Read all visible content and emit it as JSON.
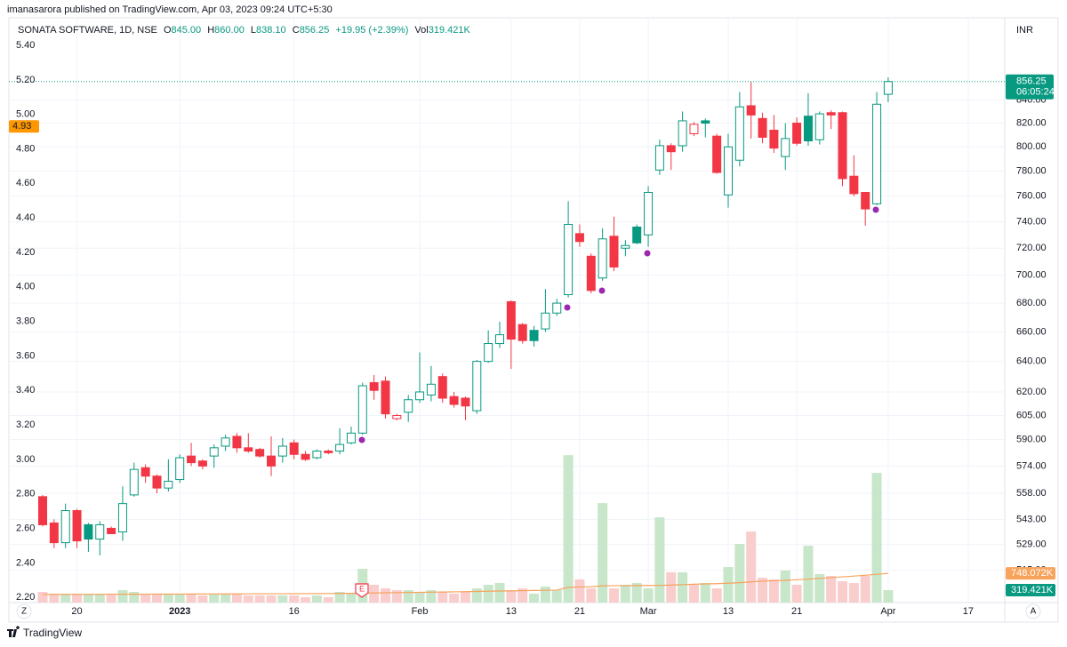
{
  "header": {
    "text": "imanasarora published on TradingView.com, Apr 03, 2023 09:24 UTC+5:30"
  },
  "chart_data": {
    "type": "candlestick",
    "legend": {
      "symbol": "SONATA SOFTWARE, 1D, NSE",
      "items": [
        {
          "key": "O",
          "value": "845.00"
        },
        {
          "key": "H",
          "value": "860.00"
        },
        {
          "key": "L",
          "value": "838.10"
        },
        {
          "key": "C",
          "value": "856.25"
        }
      ],
      "change": "+19.95 (+2.39%)",
      "volume_key": "Vol",
      "volume_value": "319.421K"
    },
    "currency": "INR",
    "categories": [
      null,
      null,
      null,
      "20",
      null,
      null,
      null,
      null,
      null,
      null,
      null,
      null,
      "2023",
      null,
      null,
      null,
      null,
      null,
      null,
      null,
      null,
      null,
      "16",
      null,
      null,
      null,
      null,
      null,
      null,
      null,
      null,
      null,
      null,
      "Feb",
      null,
      null,
      null,
      null,
      null,
      null,
      null,
      "13",
      null,
      null,
      null,
      null,
      null,
      "21",
      null,
      null,
      null,
      null,
      null,
      "Mar",
      null,
      null,
      null,
      null,
      null,
      null,
      "13",
      null,
      null,
      null,
      null,
      null,
      "21",
      null,
      null,
      null,
      null,
      null,
      null,
      null,
      "Apr",
      null,
      null,
      null,
      null,
      null,
      null,
      "17"
    ],
    "open": [
      556,
      541,
      530,
      548,
      540,
      532,
      538,
      536,
      557,
      573,
      568,
      561,
      566,
      580,
      577,
      580,
      586,
      592,
      585,
      584,
      580,
      580,
      588,
      581,
      579,
      583,
      583,
      588,
      594,
      626,
      627,
      603,
      607,
      615,
      618,
      630,
      617,
      616,
      608,
      640,
      652,
      681,
      665,
      661,
      662,
      673,
      686,
      731,
      714,
      698,
      729,
      720,
      736,
      730,
      781,
      801,
      801,
      811,
      822,
      809,
      761,
      789,
      835,
      824,
      814,
      792,
      820,
      826,
      806,
      829,
      829,
      776,
      763,
      754,
      845,
      null,
      null,
      null,
      null,
      null,
      null,
      null
    ],
    "high": [
      557,
      543,
      552,
      549,
      541,
      542,
      539,
      562,
      576,
      575,
      569,
      578,
      581,
      588,
      578,
      587,
      593,
      594,
      594,
      585,
      592,
      591,
      590,
      583,
      584,
      584,
      597,
      598,
      626,
      631,
      630,
      606,
      618,
      646,
      637,
      632,
      620,
      617,
      641,
      661,
      667,
      682,
      666,
      664,
      690,
      683,
      756,
      738,
      716,
      735,
      744,
      726,
      738,
      768,
      806,
      803,
      830,
      821,
      824,
      811,
      811,
      847,
      856,
      829,
      827,
      820,
      825,
      846,
      830,
      831,
      830,
      793,
      763,
      847,
      860,
      null,
      null,
      null,
      null,
      null,
      null,
      null
    ],
    "low": [
      539,
      527,
      527,
      527,
      525,
      523,
      535,
      531,
      556,
      564,
      558,
      559,
      564,
      574,
      572,
      573,
      583,
      582,
      582,
      579,
      568,
      576,
      578,
      577,
      578,
      581,
      581,
      587,
      593,
      615,
      603,
      602,
      601,
      613,
      614,
      613,
      610,
      602,
      606,
      639,
      649,
      635,
      652,
      650,
      660,
      671,
      684,
      721,
      687,
      696,
      703,
      714,
      723,
      721,
      777,
      781,
      796,
      809,
      808,
      778,
      751,
      784,
      807,
      803,
      795,
      781,
      801,
      801,
      802,
      815,
      768,
      760,
      737,
      753,
      838.1,
      null,
      null,
      null,
      null,
      null,
      null,
      null
    ],
    "close": [
      540,
      530,
      548,
      531,
      532,
      540,
      535,
      552,
      572,
      568,
      561,
      565,
      579,
      576,
      574,
      585,
      591,
      585,
      583,
      580,
      574,
      586,
      581,
      578,
      583,
      582,
      587,
      594,
      624,
      621,
      606,
      605,
      615,
      620,
      625,
      616,
      612,
      611,
      640,
      652,
      658,
      655,
      654,
      654,
      673,
      680,
      738,
      725,
      689,
      727,
      706,
      722,
      724,
      763,
      801,
      796,
      822,
      819,
      820,
      779,
      800,
      834,
      827,
      808,
      799,
      807,
      803,
      805,
      828,
      827,
      774,
      762,
      750,
      836.3,
      856.25,
      null,
      null,
      null,
      null,
      null,
      null,
      null
    ],
    "volume": [
      273000,
      228000,
      228000,
      228000,
      228000,
      228000,
      228000,
      319000,
      273000,
      228000,
      228000,
      228000,
      228000,
      228000,
      182000,
      228000,
      228000,
      228000,
      182000,
      182000,
      182000,
      182000,
      182000,
      137000,
      182000,
      137000,
      273000,
      228000,
      866000,
      456000,
      364000,
      319000,
      319000,
      273000,
      319000,
      273000,
      228000,
      273000,
      364000,
      456000,
      501000,
      319000,
      364000,
      228000,
      410000,
      319000,
      3781000,
      592000,
      364000,
      2551000,
      364000,
      456000,
      501000,
      364000,
      2187000,
      775000,
      775000,
      456000,
      501000,
      364000,
      911000,
      1503000,
      1822000,
      638000,
      592000,
      820000,
      456000,
      1458000,
      729000,
      683000,
      547000,
      501000,
      683000,
      3326000,
      319421,
      null,
      null,
      null,
      null,
      null,
      null,
      null
    ],
    "volume_ma": [
      205000,
      207000,
      208000,
      209000,
      210000,
      211000,
      212000,
      213000,
      214000,
      215000,
      216000,
      217000,
      218000,
      219000,
      220000,
      221000,
      222000,
      223000,
      224000,
      225000,
      226000,
      227000,
      228000,
      229000,
      230000,
      232000,
      234000,
      236000,
      240000,
      245000,
      250000,
      255000,
      258000,
      262000,
      266000,
      270000,
      275000,
      280000,
      285000,
      290000,
      296000,
      300000,
      305000,
      310000,
      315000,
      320000,
      390000,
      400000,
      405000,
      430000,
      432000,
      434000,
      436000,
      438000,
      440000,
      450000,
      460000,
      470000,
      478000,
      485000,
      495000,
      510000,
      530000,
      550000,
      560000,
      570000,
      585000,
      600000,
      620000,
      640000,
      660000,
      680000,
      700000,
      725000,
      748072,
      null,
      null,
      null,
      null,
      null,
      null,
      null
    ],
    "volume_last": {
      "value": 319421,
      "label": "319.421K"
    },
    "volume_ma_last": {
      "value": 748072,
      "label": "748.072K"
    },
    "volume_ylim": [
      0,
      15000000
    ],
    "countdown": "06:05:24",
    "ylim": [
      498,
      915
    ],
    "log_scale": true,
    "yticks": [
      {
        "value": 840,
        "label": "840.00"
      },
      {
        "value": 820,
        "label": "820.00"
      },
      {
        "value": 800,
        "label": "800.00"
      },
      {
        "value": 780,
        "label": "780.00"
      },
      {
        "value": 760,
        "label": "760.00"
      },
      {
        "value": 740,
        "label": "740.00"
      },
      {
        "value": 720,
        "label": "720.00"
      },
      {
        "value": 700,
        "label": "700.00"
      },
      {
        "value": 680,
        "label": "680.00"
      },
      {
        "value": 660,
        "label": "660.00"
      },
      {
        "value": 640,
        "label": "640.00"
      },
      {
        "value": 620,
        "label": "620.00"
      },
      {
        "value": 605,
        "label": "605.00"
      },
      {
        "value": 590,
        "label": "590.00"
      },
      {
        "value": 574,
        "label": "574.00"
      },
      {
        "value": 558,
        "label": "558.00"
      },
      {
        "value": 543,
        "label": "543.00"
      },
      {
        "value": 529,
        "label": "529.00"
      },
      {
        "value": 515,
        "label": "515.00"
      }
    ],
    "y2lim": [
      2.17,
      5.56
    ],
    "y2ticks": [
      {
        "value": 5.4,
        "label": "5.40"
      },
      {
        "value": 5.2,
        "label": "5.20"
      },
      {
        "value": 5,
        "label": "5.00"
      },
      {
        "value": 4.8,
        "label": "4.80"
      },
      {
        "value": 4.6,
        "label": "4.60"
      },
      {
        "value": 4.4,
        "label": "4.40"
      },
      {
        "value": 4.2,
        "label": "4.20"
      },
      {
        "value": 4,
        "label": "4.00"
      },
      {
        "value": 3.8,
        "label": "3.80"
      },
      {
        "value": 3.6,
        "label": "3.60"
      },
      {
        "value": 3.4,
        "label": "3.40"
      },
      {
        "value": 3.2,
        "label": "3.20"
      },
      {
        "value": 3,
        "label": "3.00"
      },
      {
        "value": 2.8,
        "label": "2.80"
      },
      {
        "value": 2.6,
        "label": "2.60"
      },
      {
        "value": 2.4,
        "label": "2.40"
      },
      {
        "value": 2.2,
        "label": "2.20"
      }
    ],
    "y2_marker": 4.93,
    "grid": true,
    "up_color": "#089981",
    "down_color": "#f23645",
    "volume_up_color": "#c8e6c9",
    "volume_down_color": "#facdcd",
    "volume_ma_color": "#f7a35c",
    "y2_marker_color": "#ff9800",
    "earnings_marker": "E"
  },
  "controls": {
    "left": "Z",
    "right": "A"
  },
  "footer": {
    "brand": "TradingView"
  }
}
